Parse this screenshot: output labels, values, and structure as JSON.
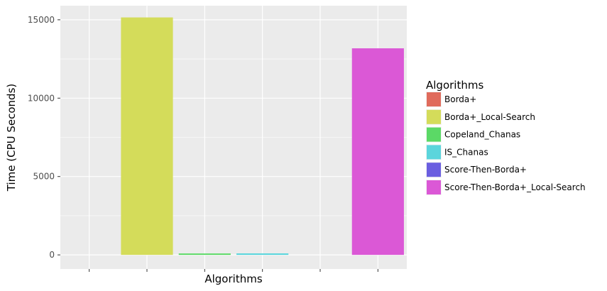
{
  "chart_data": {
    "type": "bar",
    "xlabel": "Algorithms",
    "ylabel": "Time (CPU Seconds)",
    "categories": [
      "Borda+",
      "Borda+_Local-Search",
      "Copeland_Chanas",
      "IS_Chanas",
      "Score-Then-Borda+",
      "Score-Then-Borda+_Local-Search"
    ],
    "values": [
      0,
      15150,
      90,
      95,
      0,
      13180
    ],
    "colors": [
      "#e06b5c",
      "#d4dc5a",
      "#5bd966",
      "#5bd5dc",
      "#6a5ee0",
      "#db58d6"
    ],
    "ylim": [
      -900,
      15900
    ],
    "yticks": [
      0,
      5000,
      10000,
      15000
    ],
    "ytick_labels": [
      "0",
      "5000",
      "10000",
      "15000"
    ],
    "xtick_labels": [
      "",
      "",
      "",
      "",
      "",
      ""
    ],
    "grid": true,
    "legend": {
      "title": "Algorithms",
      "placement": "right",
      "entries": [
        "Borda+",
        "Borda+_Local-Search",
        "Copeland_Chanas",
        "IS_Chanas",
        "Score-Then-Borda+",
        "Score-Then-Borda+_Local-Search"
      ]
    }
  }
}
